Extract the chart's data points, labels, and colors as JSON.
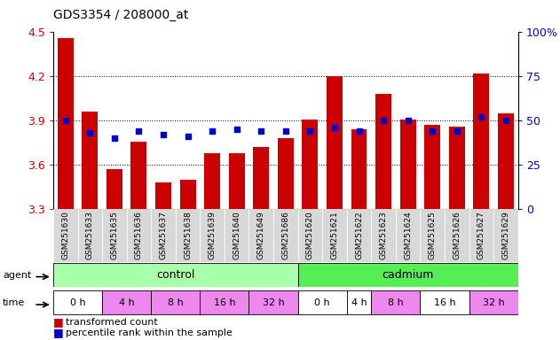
{
  "title": "GDS3354 / 208000_at",
  "samples": [
    "GSM251630",
    "GSM251633",
    "GSM251635",
    "GSM251636",
    "GSM251637",
    "GSM251638",
    "GSM251639",
    "GSM251640",
    "GSM251649",
    "GSM251686",
    "GSM251620",
    "GSM251621",
    "GSM251622",
    "GSM251623",
    "GSM251624",
    "GSM251625",
    "GSM251626",
    "GSM251627",
    "GSM251629"
  ],
  "transformed_count": [
    4.46,
    3.96,
    3.57,
    3.76,
    3.48,
    3.5,
    3.68,
    3.68,
    3.72,
    3.78,
    3.91,
    4.2,
    3.84,
    4.08,
    3.91,
    3.87,
    3.86,
    4.22,
    3.95
  ],
  "percentile_rank": [
    50,
    43,
    40,
    44,
    42,
    41,
    44,
    45,
    44,
    44,
    44,
    46,
    44,
    50,
    50,
    44,
    44,
    52,
    50
  ],
  "ylim_left": [
    3.3,
    4.5
  ],
  "ylim_right": [
    0,
    100
  ],
  "yticks_left": [
    3.3,
    3.6,
    3.9,
    4.2,
    4.5
  ],
  "yticks_right": [
    0,
    25,
    50,
    75,
    100
  ],
  "bar_color": "#cc0000",
  "dot_color": "#0000cc",
  "bar_bottom": 3.3,
  "control_color": "#aaffaa",
  "cadmium_color": "#55ee55",
  "time_white": "#ffffff",
  "time_pink": "#ee88ee",
  "time_groups_control": [
    {
      "label": "0 h",
      "bars": [
        0,
        1
      ],
      "color": "#ffffff"
    },
    {
      "label": "4 h",
      "bars": [
        2,
        3
      ],
      "color": "#ee88ee"
    },
    {
      "label": "8 h",
      "bars": [
        4,
        5
      ],
      "color": "#ee88ee"
    },
    {
      "label": "16 h",
      "bars": [
        6,
        7
      ],
      "color": "#ee88ee"
    },
    {
      "label": "32 h",
      "bars": [
        8,
        9
      ],
      "color": "#ee88ee"
    }
  ],
  "time_groups_cadmium": [
    {
      "label": "0 h",
      "bars": [
        10,
        11
      ],
      "color": "#ffffff"
    },
    {
      "label": "4 h",
      "bars": [
        12
      ],
      "color": "#ffffff"
    },
    {
      "label": "8 h",
      "bars": [
        13,
        14
      ],
      "color": "#ee88ee"
    },
    {
      "label": "16 h",
      "bars": [
        15,
        16
      ],
      "color": "#ffffff"
    },
    {
      "label": "32 h",
      "bars": [
        17,
        18
      ],
      "color": "#ee88ee"
    }
  ],
  "legend_bar_label": "transformed count",
  "legend_dot_label": "percentile rank within the sample",
  "grid_yticks": [
    3.6,
    3.9,
    4.2
  ],
  "xticklabel_bg": "#d8d8d8",
  "axis_color_left": "#cc0000",
  "axis_color_right": "#0000cc"
}
